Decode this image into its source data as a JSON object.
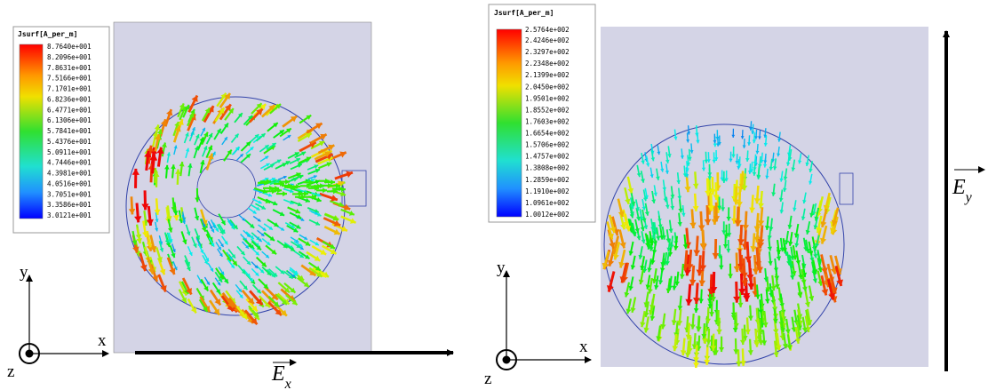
{
  "panels": [
    {
      "legend": {
        "title": "Jsurf[A_per_m]",
        "labels": [
          "8.7640e+001",
          "8.2096e+001",
          "7.8631e+001",
          "7.5166e+001",
          "7.1701e+001",
          "6.8236e+001",
          "6.4771e+001",
          "6.1306e+001",
          "5.7841e+001",
          "5.4376e+001",
          "5.0911e+001",
          "4.7446e+001",
          "4.3981e+001",
          "4.0516e+001",
          "3.7051e+001",
          "3.3586e+001",
          "3.0121e+001"
        ]
      },
      "axes": {
        "y": "y",
        "x": "x",
        "z": "z"
      },
      "field": {
        "symbol": "E",
        "subscript": "x"
      }
    },
    {
      "legend": {
        "title": "Jsurf[A_per_m]",
        "labels": [
          "2.5764e+002",
          "2.4246e+002",
          "2.3297e+002",
          "2.2348e+002",
          "2.1399e+002",
          "2.0450e+002",
          "1.9501e+002",
          "1.8552e+002",
          "1.7603e+002",
          "1.6654e+002",
          "1.5706e+002",
          "1.4757e+002",
          "1.3808e+002",
          "1.2859e+002",
          "1.1910e+002",
          "1.0961e+002",
          "1.0012e+002"
        ]
      },
      "axes": {
        "y": "y",
        "x": "x",
        "z": "z"
      },
      "field": {
        "symbol": "E",
        "subscript": "y"
      }
    }
  ]
}
